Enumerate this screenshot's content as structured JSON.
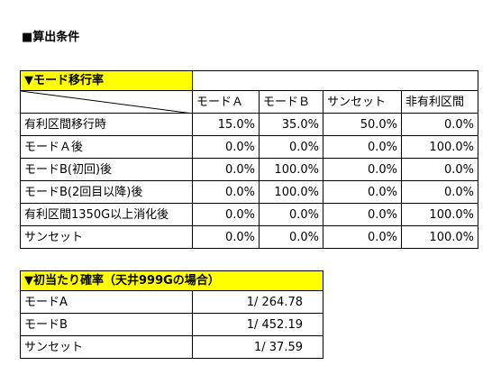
{
  "heading": "■算出条件",
  "transition_table": {
    "title": "▼モード移行率",
    "columns": [
      "モードＡ",
      "モードＢ",
      "サンセット",
      "非有利区間"
    ],
    "rows": [
      [
        "有利区間移行時",
        "15.0%",
        "35.0%",
        "50.0%",
        "0.0%"
      ],
      [
        "モードＡ後",
        "0.0%",
        "0.0%",
        "0.0%",
        "100.0%"
      ],
      [
        "モードB(初回)後",
        "0.0%",
        "100.0%",
        "0.0%",
        "0.0%"
      ],
      [
        "モードB(2回目以降)後",
        "0.0%",
        "100.0%",
        "0.0%",
        "0.0%"
      ],
      [
        "有利区間1350G以上消化後",
        "0.0%",
        "0.0%",
        "0.0%",
        "100.0%"
      ],
      [
        "サンセット",
        "0.0%",
        "0.0%",
        "0.0%",
        "100.0%"
      ]
    ]
  },
  "first_hit_table": {
    "title": "▼初当たり確率（天井999Gの場合）",
    "rows": [
      [
        "モードA",
        "1/ 264.78"
      ],
      [
        "モードB",
        "1/ 452.19"
      ],
      [
        "サンセット",
        "1/ 37.59"
      ]
    ]
  }
}
